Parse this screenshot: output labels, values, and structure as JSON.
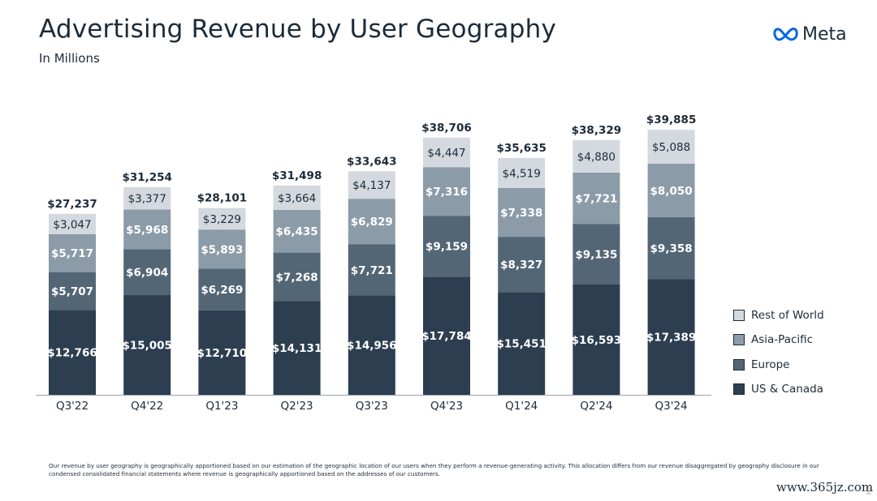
{
  "title": "Advertising Revenue by User Geography",
  "subtitle": "In Millions",
  "logo": {
    "icon": "meta-infinity-icon",
    "text": "Meta",
    "color": "#0668e1"
  },
  "footnote": "Our revenue by user geography is geographically apportioned based on our estimation of the geographic location of our users when they perform a revenue-generating activity. This allocation differs from our revenue disaggregated by geography disclosure in our condensed consolidated financial statements where revenue is geographically apportioned based on the addresses of our customers.",
  "page_number": "2",
  "watermark": "www.365jz.com",
  "chart_data": {
    "type": "bar",
    "stacked": true,
    "title": "Advertising Revenue by User Geography",
    "subtitle": "In Millions",
    "categories": [
      "Q3'22",
      "Q4'22",
      "Q1'23",
      "Q2'23",
      "Q3'23",
      "Q4'23",
      "Q1'24",
      "Q2'24",
      "Q3'24"
    ],
    "series": [
      {
        "name": "US & Canada",
        "color": "#2c3e50",
        "values": [
          12766,
          15005,
          12710,
          14131,
          14956,
          17784,
          15451,
          16593,
          17389
        ],
        "labels": [
          "$12,766",
          "$15,005",
          "$12,710",
          "$14,131",
          "$14,956",
          "$17,784",
          "$15,451",
          "$16,593",
          "$17,389"
        ]
      },
      {
        "name": "Europe",
        "color": "#536676",
        "values": [
          5707,
          6904,
          6269,
          7268,
          7721,
          9159,
          8327,
          9135,
          9358
        ],
        "labels": [
          "$5,707",
          "$6,904",
          "$6,269",
          "$7,268",
          "$7,721",
          "$9,159",
          "$8,327",
          "$9,135",
          "$9,358"
        ]
      },
      {
        "name": "Asia-Pacific",
        "color": "#8c9ba8",
        "values": [
          5717,
          5968,
          5893,
          6435,
          6829,
          7316,
          7338,
          7721,
          8050
        ],
        "labels": [
          "$5,717",
          "$5,968",
          "$5,893",
          "$6,435",
          "$6,829",
          "$7,316",
          "$7,338",
          "$7,721",
          "$8,050"
        ]
      },
      {
        "name": "Rest of World",
        "color": "#d3d9df",
        "values": [
          3047,
          3377,
          3229,
          3664,
          4137,
          4447,
          4519,
          4880,
          5088
        ],
        "labels": [
          "$3,047",
          "$3,377",
          "$3,229",
          "$3,664",
          "$4,137",
          "$4,447",
          "$4,519",
          "$4,880",
          "$5,088"
        ]
      }
    ],
    "totals": [
      27237,
      31254,
      28101,
      31498,
      33643,
      38706,
      35635,
      38329,
      39885
    ],
    "total_labels": [
      "$27,237",
      "$31,254",
      "$28,101",
      "$31,498",
      "$33,643",
      "$38,706",
      "$35,635",
      "$38,329",
      "$39,885"
    ],
    "legend": {
      "placement": "right",
      "order": [
        "Rest of World",
        "Asia-Pacific",
        "Europe",
        "US & Canada"
      ]
    },
    "grid": false
  }
}
